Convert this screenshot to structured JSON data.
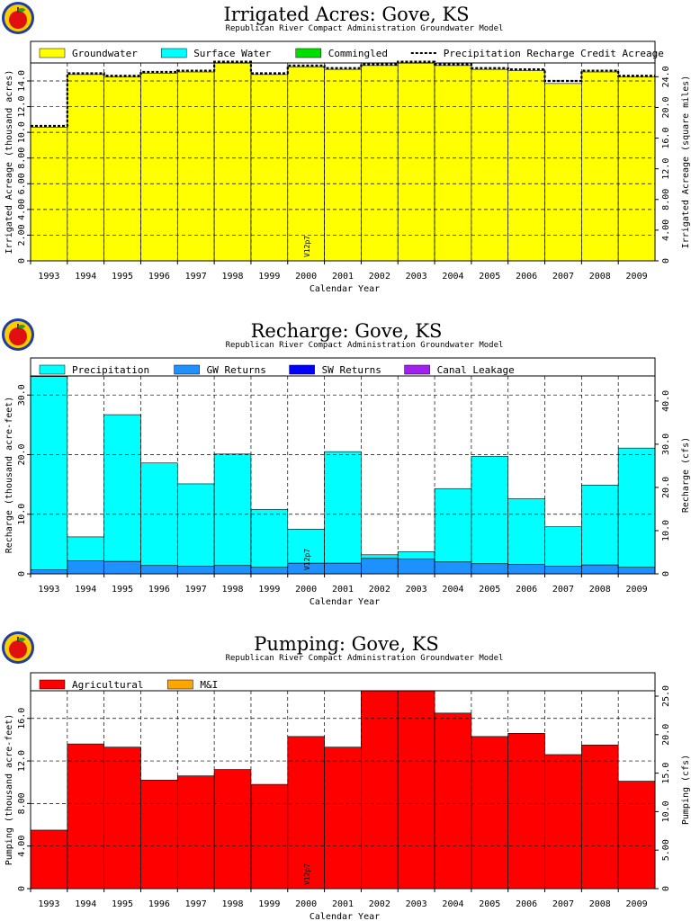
{
  "chart_data": [
    {
      "type": "area",
      "title": "Irrigated Acres: Gove, KS",
      "subtitle": "Republican River Compact Administration Groundwater Model",
      "xlabel": "Calendar Year",
      "ylabel": "Irrigated Acreage (thousand acres)",
      "ylabel_right": "Irrigated Acreage (square miles)",
      "annotation": "V12p7",
      "categories": [
        "1993",
        "1994",
        "1995",
        "1996",
        "1997",
        "1998",
        "1999",
        "2000",
        "2001",
        "2002",
        "2003",
        "2004",
        "2005",
        "2006",
        "2007",
        "2008",
        "2009"
      ],
      "series": [
        {
          "name": "Groundwater",
          "color": "#ffff00",
          "values": [
            10.4,
            14.5,
            14.3,
            14.6,
            14.7,
            15.4,
            14.5,
            15.1,
            14.9,
            15.2,
            15.4,
            15.2,
            14.9,
            14.8,
            13.8,
            14.7,
            14.3
          ]
        },
        {
          "name": "Surface Water",
          "color": "#00ffff",
          "values": [
            0,
            0,
            0,
            0,
            0,
            0,
            0,
            0,
            0,
            0,
            0,
            0,
            0,
            0,
            0,
            0,
            0
          ]
        },
        {
          "name": "Commingled",
          "color": "#00e000",
          "values": [
            0,
            0,
            0,
            0,
            0,
            0,
            0,
            0,
            0,
            0,
            0,
            0,
            0,
            0,
            0,
            0,
            0
          ]
        },
        {
          "name": "Precipitation Recharge Credit Acreage",
          "color": "#000000",
          "style": "dashed",
          "values": [
            10.5,
            14.6,
            14.4,
            14.7,
            14.8,
            15.5,
            14.6,
            15.2,
            15.0,
            15.3,
            15.5,
            15.3,
            15.0,
            14.9,
            14.0,
            14.8,
            14.4
          ]
        }
      ],
      "ylim": [
        0,
        15.4
      ],
      "yticks": [
        "0",
        "2.00",
        "4.00",
        "6.00",
        "8.00",
        "10.0",
        "12.0",
        "14.0"
      ],
      "yticks_right": [
        "0",
        "4.00",
        "8.00",
        "12.0",
        "16.0",
        "20.0",
        "24.0"
      ],
      "grid": true,
      "legend": "top"
    },
    {
      "type": "area",
      "title": "Recharge: Gove, KS",
      "subtitle": "Republican River Compact Administration Groundwater Model",
      "xlabel": "Calendar Year",
      "ylabel": "Recharge (thousand acre-feet)",
      "ylabel_right": "Recharge (cfs)",
      "annotation": "V12p7",
      "categories": [
        "1993",
        "1994",
        "1995",
        "1996",
        "1997",
        "1998",
        "1999",
        "2000",
        "2001",
        "2002",
        "2003",
        "2004",
        "2005",
        "2006",
        "2007",
        "2008",
        "2009"
      ],
      "series": [
        {
          "name": "Precipitation",
          "color": "#00ffff",
          "values": [
            32.4,
            4.0,
            24.6,
            17.2,
            13.8,
            18.7,
            9.7,
            5.7,
            18.7,
            0.6,
            1.2,
            12.3,
            18.0,
            11.0,
            6.6,
            13.4,
            20.0
          ]
        },
        {
          "name": "GW Returns",
          "color": "#1e90ff",
          "values": [
            0.7,
            2.2,
            2.1,
            1.4,
            1.3,
            1.4,
            1.1,
            1.8,
            1.8,
            2.6,
            2.5,
            2.0,
            1.7,
            1.6,
            1.3,
            1.5,
            1.1
          ]
        },
        {
          "name": "SW Returns",
          "color": "#0000ff",
          "values": [
            0,
            0,
            0,
            0,
            0,
            0,
            0,
            0,
            0,
            0,
            0,
            0,
            0,
            0,
            0,
            0,
            0
          ]
        },
        {
          "name": "Canal Leakage",
          "color": "#a020f0",
          "values": [
            0,
            0,
            0,
            0,
            0,
            0,
            0,
            0,
            0,
            0,
            0,
            0,
            0,
            0,
            0,
            0,
            0
          ]
        }
      ],
      "ylim": [
        0,
        33.2
      ],
      "yticks": [
        "0",
        "10.0",
        "20.0",
        "30.0"
      ],
      "yticks_right": [
        "0",
        "10.0",
        "20.0",
        "30.0",
        "40.0"
      ],
      "grid": true,
      "legend": "top"
    },
    {
      "type": "area",
      "title": "Pumping: Gove, KS",
      "subtitle": "Republican River Compact Administration Groundwater Model",
      "xlabel": "Calendar Year",
      "ylabel": "Pumping (thousand acre-feet)",
      "ylabel_right": "Pumping (cfs)",
      "annotation": "V12p7",
      "categories": [
        "1993",
        "1994",
        "1995",
        "1996",
        "1997",
        "1998",
        "1999",
        "2000",
        "2001",
        "2002",
        "2003",
        "2004",
        "2005",
        "2006",
        "2007",
        "2008",
        "2009"
      ],
      "series": [
        {
          "name": "Agricultural",
          "color": "#ff0000",
          "values": [
            5.5,
            13.6,
            13.3,
            10.2,
            10.6,
            11.2,
            9.8,
            14.3,
            13.3,
            18.6,
            18.6,
            16.5,
            14.3,
            14.6,
            12.6,
            13.5,
            10.1
          ]
        },
        {
          "name": "M&I",
          "color": "#ffa500",
          "values": [
            0,
            0,
            0,
            0,
            0,
            0,
            0,
            0,
            0,
            0,
            0,
            0,
            0,
            0,
            0,
            0,
            0
          ]
        }
      ],
      "ylim": [
        0,
        18.6
      ],
      "yticks": [
        "0",
        "4.00",
        "8.00",
        "12.0",
        "16.0"
      ],
      "yticks_right": [
        "0",
        "5.00",
        "10.0",
        "15.0",
        "20.0",
        "25.0"
      ],
      "grid": true,
      "legend": "top"
    }
  ]
}
